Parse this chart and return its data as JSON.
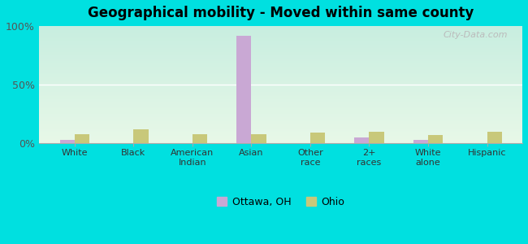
{
  "title": "Geographical mobility - Moved within same county",
  "categories": [
    "White",
    "Black",
    "American\nIndian",
    "Asian",
    "Other\nrace",
    "2+\nraces",
    "White\nalone",
    "Hispanic"
  ],
  "ottawa_values": [
    3,
    0,
    0,
    92,
    0,
    5,
    3,
    0
  ],
  "ohio_values": [
    8,
    12,
    8,
    8,
    9,
    10,
    7,
    10
  ],
  "ottawa_color": "#c9a8d4",
  "ohio_color": "#c8c87a",
  "background_outer": "#00e0e0",
  "ylim": [
    0,
    100
  ],
  "yticks": [
    0,
    50,
    100
  ],
  "ytick_labels": [
    "0%",
    "50%",
    "100%"
  ],
  "bar_width": 0.25,
  "legend_ottawa": "Ottawa, OH",
  "legend_ohio": "Ohio",
  "watermark": "City-Data.com"
}
